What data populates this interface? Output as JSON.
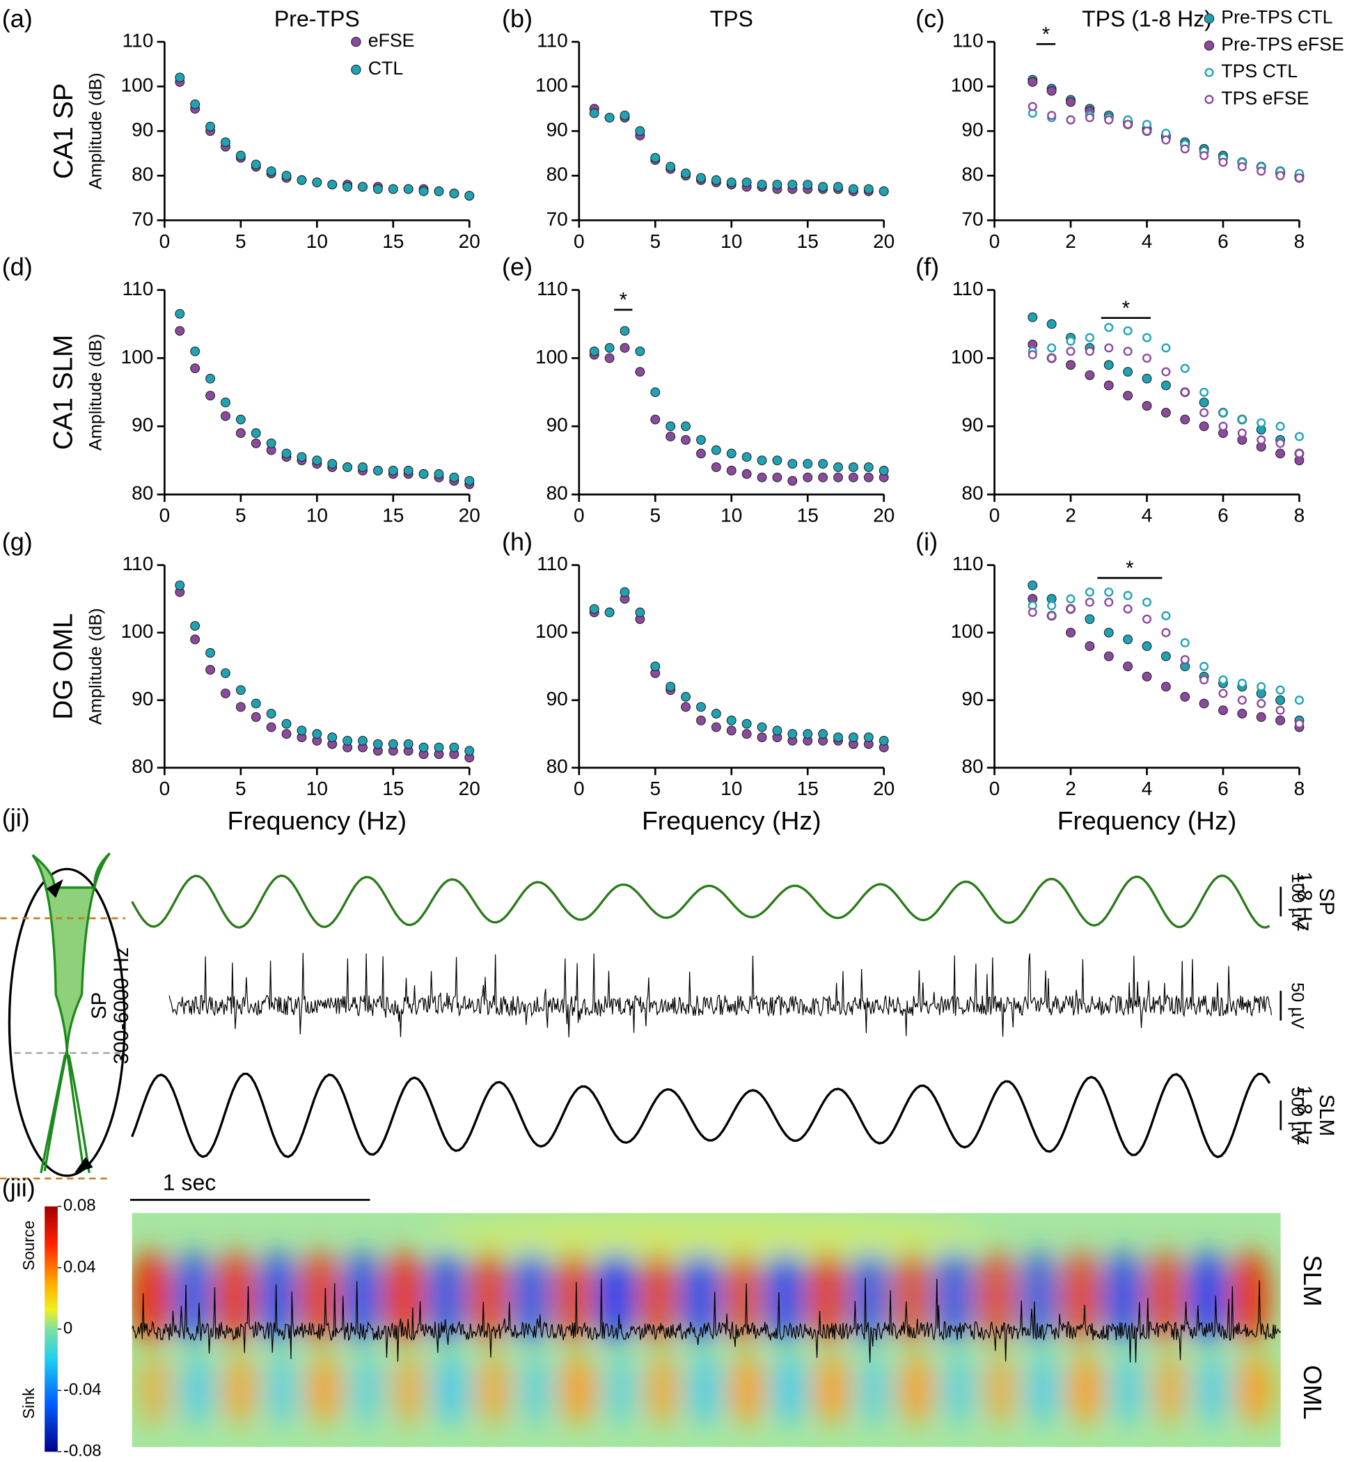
{
  "panel_labels": [
    "(a)",
    "(b)",
    "(c)",
    "(d)",
    "(e)",
    "(f)",
    "(g)",
    "(h)",
    "(i)",
    "(ji)",
    "(jii)"
  ],
  "column_titles": [
    "Pre-TPS",
    "TPS",
    "TPS (1-8 Hz)"
  ],
  "row_labels": [
    "CA1 SP",
    "CA1 SLM",
    "DG OML"
  ],
  "y_axis_label": "Amplitude (dB)",
  "x_axis_label": "Frequency (Hz)",
  "chart_data": [
    {
      "type": "line",
      "legend": "upper-right",
      "x": [
        1,
        2,
        3,
        4,
        5,
        6,
        7,
        8,
        9,
        10,
        11,
        12,
        13,
        14,
        15,
        16,
        17,
        18,
        19,
        20
      ],
      "xlim": [
        0,
        20
      ],
      "xticks": [
        0,
        5,
        10,
        15,
        20
      ],
      "ylim": [
        70,
        110
      ],
      "yticks": [
        70,
        80,
        90,
        100,
        110
      ],
      "series": [
        {
          "name": "eFSE",
          "color": "#8b4a9e",
          "marker": "filled",
          "values": [
            101,
            95,
            90,
            86.5,
            84,
            82,
            80.5,
            79.5,
            79,
            78.5,
            78,
            78,
            77.5,
            77.5,
            77,
            77,
            77,
            76.5,
            76,
            75.5
          ]
        },
        {
          "name": "CTL",
          "color": "#1fa3b4",
          "marker": "filled",
          "values": [
            102,
            96,
            91,
            87.5,
            84.5,
            82.5,
            81,
            80,
            79,
            78.5,
            78,
            77.5,
            77.5,
            77,
            77,
            77,
            76.5,
            76.5,
            76,
            75.5
          ]
        }
      ]
    },
    {
      "type": "line",
      "x": [
        1,
        2,
        3,
        4,
        5,
        6,
        7,
        8,
        9,
        10,
        11,
        12,
        13,
        14,
        15,
        16,
        17,
        18,
        19,
        20
      ],
      "xlim": [
        0,
        20
      ],
      "xticks": [
        0,
        5,
        10,
        15,
        20
      ],
      "ylim": [
        70,
        110
      ],
      "yticks": [
        70,
        80,
        90,
        100,
        110
      ],
      "series": [
        {
          "color": "#8b4a9e",
          "marker": "filled",
          "values": [
            95,
            93,
            93,
            89,
            83.5,
            81.5,
            80,
            79,
            78.5,
            78,
            77.5,
            77.5,
            77,
            77,
            77,
            77,
            77,
            76.5,
            76.5,
            76.5
          ]
        },
        {
          "color": "#1fa3b4",
          "marker": "filled",
          "values": [
            94,
            93,
            93.5,
            90,
            84,
            82,
            80.5,
            79.5,
            79,
            78.5,
            78.5,
            78,
            78,
            78,
            78,
            77.5,
            77.5,
            77,
            77,
            76.5
          ]
        }
      ]
    },
    {
      "type": "line",
      "legend": "outside-right",
      "x": [
        1,
        1.5,
        2,
        2.5,
        3,
        3.5,
        4,
        4.5,
        5,
        5.5,
        6,
        6.5,
        7,
        7.5,
        8
      ],
      "xlim": [
        0,
        8
      ],
      "xticks": [
        0,
        2,
        4,
        6,
        8
      ],
      "ylim": [
        70,
        110
      ],
      "yticks": [
        70,
        80,
        90,
        100,
        110
      ],
      "annotations": [
        {
          "text": "*",
          "x": [
            1.1,
            1.6
          ],
          "y": 109.5
        }
      ],
      "series": [
        {
          "name": "Pre-TPS CTL",
          "color": "#1fa3b4",
          "marker": "filled",
          "values": [
            101.5,
            99.5,
            97,
            95,
            93.5,
            92,
            90.5,
            89,
            87.5,
            86,
            84.5,
            83,
            82,
            81,
            80
          ]
        },
        {
          "name": "Pre-TPS eFSE",
          "color": "#8b4a9e",
          "marker": "filled",
          "values": [
            101,
            99,
            96.5,
            94.5,
            93,
            91.5,
            90,
            88.5,
            87,
            85.5,
            84,
            83,
            82,
            80.5,
            79.5
          ]
        },
        {
          "name": "TPS CTL",
          "color": "#1fa3b4",
          "marker": "open",
          "values": [
            94,
            93,
            92.5,
            93.5,
            93,
            92.5,
            91.5,
            89.5,
            87,
            85.5,
            84,
            83,
            82,
            81,
            80.5
          ]
        },
        {
          "name": "TPS eFSE",
          "color": "#8b4a9e",
          "marker": "open",
          "values": [
            95.5,
            93.5,
            92.5,
            93,
            92.5,
            91.5,
            90,
            88,
            86,
            84.5,
            83,
            82,
            81,
            80,
            79.5
          ]
        }
      ]
    },
    {
      "type": "line",
      "x": [
        1,
        2,
        3,
        4,
        5,
        6,
        7,
        8,
        9,
        10,
        11,
        12,
        13,
        14,
        15,
        16,
        17,
        18,
        19,
        20
      ],
      "xlim": [
        0,
        20
      ],
      "xticks": [
        0,
        5,
        10,
        15,
        20
      ],
      "ylim": [
        80,
        110
      ],
      "yticks": [
        80,
        90,
        100,
        110
      ],
      "series": [
        {
          "color": "#8b4a9e",
          "marker": "filled",
          "values": [
            104,
            98.5,
            94.5,
            91.5,
            89,
            87.5,
            86.5,
            85.5,
            85,
            84.5,
            84,
            84,
            83.5,
            83.5,
            83,
            83,
            83,
            82.5,
            82,
            81.5
          ]
        },
        {
          "color": "#1fa3b4",
          "marker": "filled",
          "values": [
            106.5,
            101,
            97,
            93.5,
            91,
            89,
            87.5,
            86,
            85.5,
            85,
            84.5,
            84,
            84,
            83.5,
            83.5,
            83.5,
            83,
            83,
            82.5,
            82
          ]
        }
      ]
    },
    {
      "type": "line",
      "x": [
        1,
        2,
        3,
        4,
        5,
        6,
        7,
        8,
        9,
        10,
        11,
        12,
        13,
        14,
        15,
        16,
        17,
        18,
        19,
        20
      ],
      "xlim": [
        0,
        20
      ],
      "xticks": [
        0,
        5,
        10,
        15,
        20
      ],
      "ylim": [
        80,
        110
      ],
      "yticks": [
        80,
        90,
        100,
        110
      ],
      "annotations": [
        {
          "text": "*",
          "x": [
            2.3,
            3.5
          ],
          "y": 107.1
        }
      ],
      "series": [
        {
          "color": "#8b4a9e",
          "marker": "filled",
          "values": [
            100.5,
            100,
            101.5,
            98,
            91,
            88.5,
            88,
            86,
            84,
            83.5,
            83,
            82.5,
            82.5,
            82,
            82.5,
            82.5,
            82.5,
            82.5,
            82.5,
            82.5
          ]
        },
        {
          "color": "#1fa3b4",
          "marker": "filled",
          "values": [
            101,
            101.5,
            104,
            101,
            95,
            90,
            90,
            88,
            86.5,
            86,
            85.5,
            85,
            85,
            84.5,
            84.5,
            84.5,
            84,
            84,
            84,
            83.5
          ]
        }
      ]
    },
    {
      "type": "line",
      "x": [
        1,
        1.5,
        2,
        2.5,
        3,
        3.5,
        4,
        4.5,
        5,
        5.5,
        6,
        6.5,
        7,
        7.5,
        8
      ],
      "xlim": [
        0,
        8
      ],
      "xticks": [
        0,
        2,
        4,
        6,
        8
      ],
      "ylim": [
        80,
        110
      ],
      "yticks": [
        80,
        90,
        100,
        110
      ],
      "annotations": [
        {
          "text": "*",
          "x": [
            2.8,
            4.1
          ],
          "y": 105.9
        }
      ],
      "series": [
        {
          "color": "#1fa3b4",
          "marker": "filled",
          "values": [
            106,
            105,
            103,
            101.5,
            99,
            98,
            97,
            96,
            95,
            93.5,
            92,
            91,
            89.5,
            88,
            86
          ]
        },
        {
          "color": "#8b4a9e",
          "marker": "filled",
          "values": [
            102,
            100,
            99,
            97.5,
            96,
            94.5,
            93,
            92,
            91,
            90,
            89,
            88,
            87,
            86,
            85
          ]
        },
        {
          "color": "#1fa3b4",
          "marker": "open",
          "values": [
            101,
            101.5,
            102.5,
            103,
            104.5,
            104,
            103,
            101.5,
            98.5,
            95,
            92,
            91,
            90.5,
            90,
            88.5
          ]
        },
        {
          "color": "#8b4a9e",
          "marker": "open",
          "values": [
            100.5,
            100,
            101,
            101,
            101.5,
            101,
            100,
            98,
            95,
            92,
            90,
            89,
            88,
            87.5,
            86
          ]
        }
      ]
    },
    {
      "type": "line",
      "x": [
        1,
        2,
        3,
        4,
        5,
        6,
        7,
        8,
        9,
        10,
        11,
        12,
        13,
        14,
        15,
        16,
        17,
        18,
        19,
        20
      ],
      "xlim": [
        0,
        20
      ],
      "xticks": [
        0,
        5,
        10,
        15,
        20
      ],
      "ylim": [
        80,
        110
      ],
      "yticks": [
        80,
        90,
        100,
        110
      ],
      "series": [
        {
          "color": "#8b4a9e",
          "marker": "filled",
          "values": [
            106,
            99,
            94.5,
            91,
            89,
            87.5,
            86,
            85,
            84.5,
            84,
            83.5,
            83,
            83,
            82.5,
            82.5,
            82.5,
            82,
            82,
            82,
            81.5
          ]
        },
        {
          "color": "#1fa3b4",
          "marker": "filled",
          "values": [
            107,
            101,
            97,
            94,
            91.5,
            89.5,
            88,
            86.5,
            85.5,
            85,
            84.5,
            84,
            84,
            83.5,
            83.5,
            83.5,
            83,
            83,
            83,
            82.5
          ]
        }
      ]
    },
    {
      "type": "line",
      "x": [
        1,
        2,
        3,
        4,
        5,
        6,
        7,
        8,
        9,
        10,
        11,
        12,
        13,
        14,
        15,
        16,
        17,
        18,
        19,
        20
      ],
      "xlim": [
        0,
        20
      ],
      "xticks": [
        0,
        5,
        10,
        15,
        20
      ],
      "ylim": [
        80,
        110
      ],
      "yticks": [
        80,
        90,
        100,
        110
      ],
      "series": [
        {
          "color": "#8b4a9e",
          "marker": "filled",
          "values": [
            103,
            103,
            105,
            102,
            94,
            91.5,
            89,
            87,
            86,
            85.5,
            85,
            84.5,
            84.5,
            84,
            84,
            84,
            84,
            83.5,
            83.5,
            83
          ]
        },
        {
          "color": "#1fa3b4",
          "marker": "filled",
          "values": [
            103.5,
            103,
            106,
            103,
            95,
            92,
            90.5,
            89,
            88,
            87,
            86.5,
            86,
            85.5,
            85,
            85,
            85,
            84.5,
            84.5,
            84.5,
            84
          ]
        }
      ]
    },
    {
      "type": "line",
      "x": [
        1,
        1.5,
        2,
        2.5,
        3,
        3.5,
        4,
        4.5,
        5,
        5.5,
        6,
        6.5,
        7,
        7.5,
        8
      ],
      "xlim": [
        0,
        8
      ],
      "xticks": [
        0,
        2,
        4,
        6,
        8
      ],
      "ylim": [
        80,
        110
      ],
      "yticks": [
        80,
        90,
        100,
        110
      ],
      "annotations": [
        {
          "text": "*",
          "x": [
            2.7,
            4.4
          ],
          "y": 108.1
        }
      ],
      "series": [
        {
          "color": "#1fa3b4",
          "marker": "filled",
          "values": [
            107,
            105,
            103.5,
            102,
            100,
            99,
            98,
            96.5,
            95,
            93.5,
            92.5,
            92,
            91,
            90,
            87
          ]
        },
        {
          "color": "#8b4a9e",
          "marker": "filled",
          "values": [
            105,
            102.5,
            100,
            98,
            96.5,
            95,
            93.5,
            92,
            90.5,
            89.5,
            88.5,
            88,
            87.5,
            87,
            86
          ]
        },
        {
          "color": "#1fa3b4",
          "marker": "open",
          "values": [
            104,
            104,
            105,
            106,
            106,
            105.5,
            104.5,
            102.5,
            98.5,
            95,
            93,
            92.5,
            92,
            91.5,
            90
          ]
        },
        {
          "color": "#8b4a9e",
          "marker": "open",
          "values": [
            103,
            102.5,
            103.5,
            104.5,
            104.5,
            103.5,
            102,
            100,
            96,
            93,
            91,
            90,
            89.5,
            88.5,
            86.5
          ]
        }
      ]
    },
    {
      "type": "colorbar",
      "ylim": [
        -0.08,
        0.08
      ],
      "yticks": [
        0.08,
        0.04,
        0,
        -0.04,
        -0.08
      ],
      "labels": [
        "Source",
        "Sink"
      ]
    }
  ],
  "traces": [
    {
      "label": [
        "SP",
        "1-8 Hz"
      ],
      "scale": "100 µV"
    },
    {
      "label": [
        "SP",
        "300-6000 Hz"
      ],
      "scale": "50 µV"
    },
    {
      "label": [
        "SLM",
        "1-8 Hz"
      ],
      "scale": "500 µV"
    }
  ],
  "csd": {
    "time_scale": "1 sec",
    "layers": [
      "SLM",
      "OML"
    ]
  }
}
